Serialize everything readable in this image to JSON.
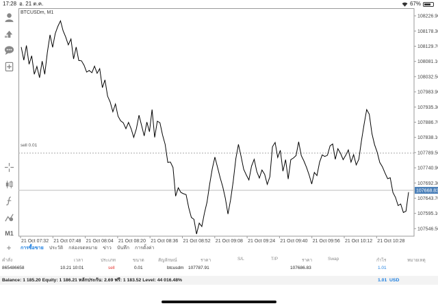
{
  "status_bar": {
    "time": "17:28",
    "date": "อ. 21 ต.ค.",
    "battery": "67%",
    "battery_level": 0.67
  },
  "chart": {
    "symbol_timeframe": "BTCUSDm, M1",
    "order_line_label": "sell 0.01",
    "current_price": "107668.83",
    "line_color": "#000000",
    "current_price_color": "#4a7fb8"
  },
  "chart_data": {
    "type": "line",
    "y_ticks": [
      "108226.90",
      "108178.30",
      "108129.70",
      "108081.10",
      "108032.50",
      "107983.90",
      "107935.30",
      "107886.70",
      "107838.10",
      "107789.50",
      "107740.90",
      "107692.30",
      "107643.70",
      "107595.10",
      "107546.50"
    ],
    "x_ticks": [
      "21 Oct 07:32",
      "21 Oct 07:48",
      "21 Oct 08:04",
      "21 Oct 08:20",
      "21 Oct 08:36",
      "21 Oct 08:52",
      "21 Oct 09:08",
      "21 Oct 09:24",
      "21 Oct 09:40",
      "21 Oct 09:56",
      "21 Oct 10:12",
      "21 Oct 10:28"
    ],
    "ylim": [
      107522.2,
      108251.2
    ],
    "order_level": 107787.91,
    "current_level": 107668.83,
    "series": [
      {
        "values": [
          108127,
          108085,
          108132,
          108072,
          108099,
          108040,
          108065,
          108029,
          108082,
          108040,
          108110,
          108166,
          108126,
          108170,
          108193,
          108211,
          108179,
          108159,
          108134,
          108153,
          108089,
          108127,
          108084,
          108083,
          108069,
          108047,
          108052,
          108045,
          108066,
          108043,
          108058,
          107997,
          108022,
          107970,
          107951,
          107920,
          107945,
          107906,
          107891,
          107885,
          107866,
          107886,
          107866,
          107838,
          107866,
          107909,
          107876,
          107843,
          107887,
          107856,
          107927,
          107838,
          107890,
          107885,
          107846,
          107816,
          107758,
          107759,
          107742,
          107650,
          107677,
          107662,
          107658,
          107655,
          107613,
          107582,
          107576,
          107529,
          107564,
          107553,
          107596,
          107631,
          107689,
          107738,
          107775,
          107743,
          107710,
          107680,
          107643,
          107593,
          107638,
          107698,
          107770,
          107816,
          107778,
          107736,
          107718,
          107702,
          107746,
          107768,
          107729,
          107708,
          107734,
          107720,
          107688,
          107712,
          107808,
          107822,
          107774,
          107797,
          107730,
          107767,
          107705,
          107767,
          107772,
          107780,
          107824,
          107780,
          107763,
          107742,
          107718,
          107689,
          107726,
          107716,
          107759,
          107782,
          107777,
          107781,
          107811,
          107817,
          107768,
          107802,
          107787,
          107767,
          107781,
          107798,
          107759,
          107783,
          107750,
          107768,
          107828,
          107880,
          107927,
          107912,
          107850,
          107815,
          107791,
          107758,
          107744,
          107724,
          107706,
          107709,
          107662,
          107646,
          107620,
          107625,
          107598,
          107602,
          107663
        ]
      }
    ]
  },
  "toolbar": {
    "items": [
      "account-icon",
      "trade-icon",
      "chat-icon",
      "add-chart-icon",
      "crosshair-icon",
      "candles-icon",
      "indicator-icon",
      "objects-icon",
      "timeframe-M1"
    ],
    "timeframe": "M1"
  },
  "tabs": {
    "plus": "+",
    "items": [
      "การซื้อขาย",
      "ประวัติ",
      "กล่องจดหมาย",
      "ข่าว",
      "บันทึก",
      "การตั้งค่า"
    ],
    "active_index": 0
  },
  "table": {
    "headers": [
      "คำสั่ง",
      "เวลา",
      "ประเภท",
      "ขนาด",
      "สัญลักษณ์",
      "ราคา",
      "S/L",
      "T/P",
      "ราคา",
      "Swap",
      "กำไร",
      "หมายเหตุ"
    ],
    "rows": [
      {
        "order": "865486658",
        "time": "10.21 10:01",
        "type": "sell",
        "volume": "0.01",
        "symbol": "btcusdm",
        "price_open": "107787.91",
        "sl": "",
        "tp": "",
        "price_current": "107686.83",
        "swap": "",
        "profit": "1.01",
        "comment": ""
      }
    ]
  },
  "balance": {
    "text": "Balance: 1 185.20 Equity: 1 186.21 หลักประกัน: 2.69 ฟรี: 1 183.52 Level: 44 016.48%",
    "profit": "1.01",
    "currency": "USD"
  }
}
